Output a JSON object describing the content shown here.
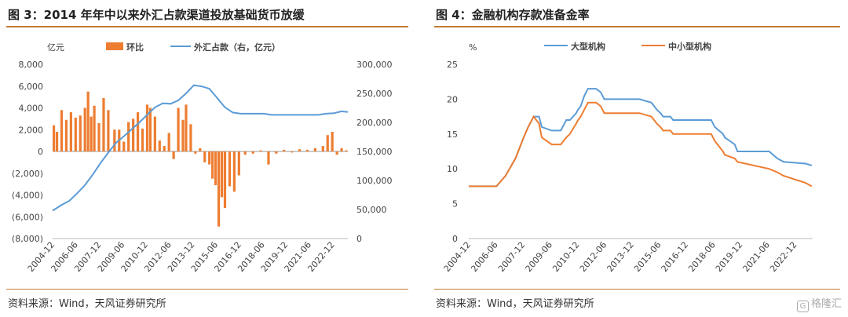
{
  "left": {
    "title": "图 3：2014 年年中以来外汇占款渠道投放基础货币放缓",
    "source": "资料来源：Wind，天风证券研究所"
  },
  "right": {
    "title": "图 4：金融机构存款准备金率",
    "source": "资料来源：Wind，天风证券研究所"
  },
  "watermark": {
    "box": "G",
    "text": "格隆汇"
  },
  "chart_data": [
    {
      "type": "bar+line",
      "title": "2014 年年中以来外汇占款渠道投放基础货币放缓",
      "yunit_left": "亿元",
      "ylim_left": [
        -8000,
        8000
      ],
      "yticks_left": [
        "8,000",
        "6,000",
        "4,000",
        "2,000",
        "0",
        "(2,000)",
        "(4,000)",
        "(6,000)",
        "(8,000)"
      ],
      "ylim_right": [
        0,
        300000
      ],
      "yticks_right": [
        "300,000",
        "250,000",
        "200,000",
        "150,000",
        "100,000",
        "50,000",
        "0"
      ],
      "xlim": [
        2004.92,
        2023.9
      ],
      "x_ticks": [
        "2004-12",
        "2006-06",
        "2007-12",
        "2009-06",
        "2010-12",
        "2012-06",
        "2013-12",
        "2015-06",
        "2016-12",
        "2018-06",
        "2019-12",
        "2021-06",
        "2022-12"
      ],
      "colors": {
        "bar": "#ed7d31",
        "line": "#5b9bd5"
      },
      "series": [
        {
          "name": "环比",
          "kind": "bar",
          "axis": "left",
          "x": [
            2005.0,
            2005.2,
            2005.5,
            2005.8,
            2006.1,
            2006.4,
            2006.7,
            2007.0,
            2007.2,
            2007.4,
            2007.6,
            2007.9,
            2008.2,
            2008.5,
            2008.9,
            2009.2,
            2009.5,
            2009.8,
            2010.1,
            2010.4,
            2010.7,
            2011.0,
            2011.2,
            2011.5,
            2011.8,
            2012.1,
            2012.4,
            2012.7,
            2013.0,
            2013.3,
            2013.5,
            2013.8,
            2014.1,
            2014.4,
            2014.7,
            2015.0,
            2015.2,
            2015.4,
            2015.6,
            2015.8,
            2016.0,
            2016.3,
            2016.6,
            2016.9,
            2017.3,
            2017.8,
            2018.3,
            2018.8,
            2019.3,
            2019.8,
            2020.3,
            2020.8,
            2021.3,
            2021.8,
            2022.3,
            2022.6,
            2022.9,
            2023.2,
            2023.5,
            2023.8
          ],
          "values": [
            2400,
            1800,
            3800,
            2900,
            3600,
            3100,
            3300,
            4000,
            5500,
            3200,
            4200,
            2600,
            4900,
            3800,
            2000,
            2000,
            900,
            2700,
            3000,
            3600,
            2100,
            4300,
            4000,
            3200,
            1000,
            500,
            1700,
            -700,
            4000,
            2900,
            4300,
            2500,
            -200,
            300,
            -1000,
            -1200,
            -2500,
            -3100,
            -6900,
            -4200,
            -5200,
            -3200,
            -3700,
            -2200,
            -300,
            -200,
            100,
            -1200,
            -200,
            150,
            -100,
            200,
            150,
            300,
            500,
            1500,
            1800,
            -300,
            300,
            100
          ]
        },
        {
          "name": "外汇占款（右，亿元）",
          "kind": "line",
          "axis": "right",
          "x": [
            2004.92,
            2005.5,
            2006.0,
            2006.5,
            2007.0,
            2007.5,
            2008.0,
            2008.5,
            2009.0,
            2009.5,
            2010.0,
            2010.5,
            2011.0,
            2011.5,
            2012.0,
            2012.5,
            2013.0,
            2013.5,
            2014.0,
            2014.5,
            2015.0,
            2015.5,
            2016.0,
            2016.5,
            2017.0,
            2017.5,
            2018.0,
            2018.5,
            2019.0,
            2019.5,
            2020.0,
            2020.5,
            2021.0,
            2021.5,
            2022.0,
            2022.5,
            2023.0,
            2023.5,
            2023.9
          ],
          "values": [
            48000,
            58000,
            65000,
            78000,
            92000,
            110000,
            130000,
            148000,
            165000,
            176000,
            188000,
            200000,
            213000,
            226000,
            233000,
            232000,
            238000,
            250000,
            264000,
            262000,
            258000,
            242000,
            226000,
            217000,
            215000,
            215000,
            215000,
            215000,
            213000,
            213000,
            213000,
            213000,
            213000,
            213000,
            213000,
            215000,
            216000,
            219000,
            218000
          ]
        }
      ]
    },
    {
      "type": "line",
      "title": "金融机构存款准备金率",
      "yunit": "%",
      "ylim": [
        0,
        25
      ],
      "yticks": [
        "25",
        "20",
        "15",
        "10",
        "5",
        "0"
      ],
      "xlim": [
        2004.92,
        2023.9
      ],
      "x_ticks": [
        "2004-12",
        "2006-06",
        "2007-12",
        "2009-06",
        "2010-12",
        "2012-06",
        "2013-12",
        "2015-06",
        "2016-12",
        "2018-06",
        "2019-12",
        "2021-06",
        "2022-12"
      ],
      "colors": {
        "large": "#5b9bd5",
        "small": "#ed7d31"
      },
      "series": [
        {
          "name": "大型机构",
          "x": [
            2004.92,
            2006.45,
            2006.95,
            2007.5,
            2007.95,
            2008.2,
            2008.5,
            2008.8,
            2008.95,
            2009.5,
            2010.0,
            2010.3,
            2010.5,
            2010.85,
            2010.95,
            2011.1,
            2011.3,
            2011.5,
            2011.95,
            2012.2,
            2012.4,
            2014.35,
            2015.0,
            2015.3,
            2015.5,
            2015.65,
            2016.05,
            2016.2,
            2018.3,
            2018.5,
            2018.95,
            2019.05,
            2019.6,
            2019.75,
            2021.5,
            2021.95,
            2022.3,
            2023.5,
            2023.85
          ],
          "values": [
            7.5,
            7.5,
            9,
            11.5,
            14.5,
            16,
            17.5,
            17.5,
            16,
            15.5,
            15.5,
            17,
            17,
            18,
            18.5,
            19,
            20.5,
            21.5,
            21.5,
            21,
            20,
            20,
            19.5,
            18.5,
            18,
            17.5,
            17.5,
            17,
            17,
            16,
            15,
            14.5,
            13.5,
            12.5,
            12.5,
            11.5,
            11,
            10.75,
            10.5
          ]
        },
        {
          "name": "中小型机构",
          "x": [
            2004.92,
            2006.45,
            2006.95,
            2007.5,
            2007.95,
            2008.2,
            2008.5,
            2008.8,
            2008.95,
            2009.5,
            2010.0,
            2010.3,
            2010.5,
            2010.85,
            2010.95,
            2011.1,
            2011.3,
            2011.5,
            2011.95,
            2012.2,
            2012.4,
            2014.35,
            2015.0,
            2015.3,
            2015.5,
            2015.65,
            2016.05,
            2016.2,
            2018.3,
            2018.5,
            2018.95,
            2019.05,
            2019.6,
            2019.75,
            2021.5,
            2021.95,
            2022.3,
            2023.5,
            2023.85
          ],
          "values": [
            7.5,
            7.5,
            9,
            11.5,
            14.5,
            16,
            17.5,
            16.5,
            14.5,
            13.5,
            13.5,
            14.5,
            15,
            16.5,
            17,
            17.5,
            18.5,
            19.5,
            19.5,
            19,
            18,
            18,
            17.5,
            16.5,
            16,
            15.5,
            15.5,
            15,
            15,
            14,
            12.5,
            12,
            11.5,
            11,
            10,
            9.5,
            9,
            8,
            7.5
          ]
        }
      ]
    }
  ]
}
